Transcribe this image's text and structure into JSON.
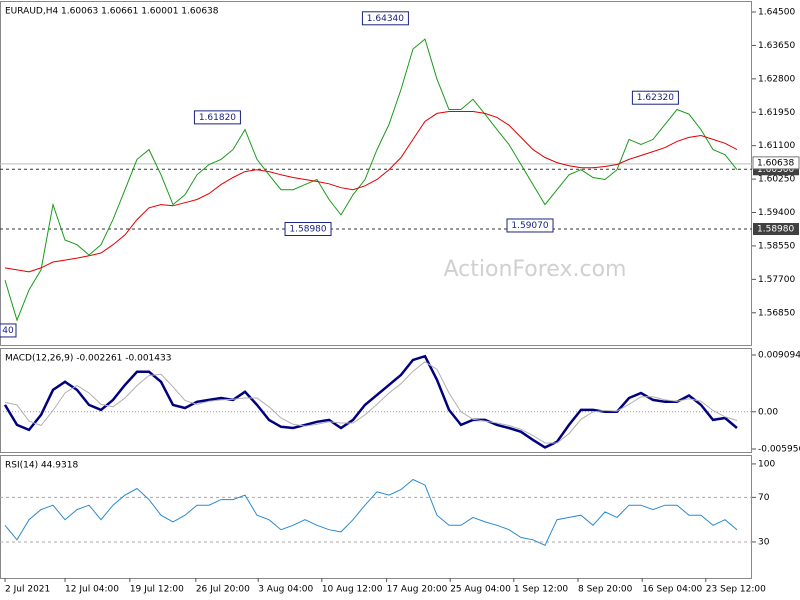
{
  "chart_data": [
    {
      "type": "line",
      "title": "EURAUD,H4  1.60063 1.60661 1.60001 1.60638",
      "watermark": "ActionForex.com",
      "xlim": [
        -0.42,
        62.25
      ],
      "ylim": [
        1.5603,
        1.6478
      ],
      "yticks": [
        {
          "value": 1.645,
          "label": "1.64500"
        },
        {
          "value": 1.6365,
          "label": "1.63650"
        },
        {
          "value": 1.628,
          "label": "1.62800"
        },
        {
          "value": 1.6195,
          "label": "1.61950"
        },
        {
          "value": 1.611,
          "label": "1.61100"
        },
        {
          "value": 1.6025,
          "label": "1.60250"
        },
        {
          "value": 1.594,
          "label": "1.59400"
        },
        {
          "value": 1.5855,
          "label": "1.58550"
        },
        {
          "value": 1.577,
          "label": "1.57700"
        },
        {
          "value": 1.5685,
          "label": "1.56850"
        }
      ],
      "series": [
        {
          "color": "#1a9a1a",
          "values": [
            1.5768,
            1.5666,
            1.5743,
            1.5794,
            1.596,
            1.587,
            1.5858,
            1.5832,
            1.5858,
            1.5922,
            1.5998,
            1.6075,
            1.61,
            1.6036,
            1.596,
            1.5985,
            1.6036,
            1.6062,
            1.6075,
            1.61,
            1.6151,
            1.6075,
            1.6036,
            1.5998,
            1.5998,
            1.6011,
            1.6024,
            1.5973,
            1.5934,
            1.5985,
            1.6024,
            1.61,
            1.6164,
            1.6253,
            1.6356,
            1.6381,
            1.6279,
            1.6202,
            1.6202,
            1.6228,
            1.619,
            1.6151,
            1.6113,
            1.6062,
            1.6011,
            1.596,
            1.5998,
            1.6036,
            1.6049,
            1.6029,
            1.6024,
            1.6049,
            1.6126,
            1.6113,
            1.6126,
            1.6164,
            1.6202,
            1.619,
            1.6151,
            1.61,
            1.6087,
            1.6049
          ]
        },
        {
          "color": "#e00000",
          "values": [
            1.5799,
            1.5794,
            1.5789,
            1.5799,
            1.5814,
            1.5819,
            1.5824,
            1.583,
            1.5837,
            1.5858,
            1.5883,
            1.5922,
            1.5952,
            1.596,
            1.5957,
            1.5965,
            1.5973,
            1.5988,
            1.6011,
            1.6029,
            1.6044,
            1.6049,
            1.6044,
            1.6036,
            1.6029,
            1.6024,
            1.6019,
            1.6013,
            1.6003,
            1.5998,
            1.6008,
            1.6024,
            1.6049,
            1.608,
            1.6126,
            1.6172,
            1.6192,
            1.6197,
            1.6197,
            1.6197,
            1.6192,
            1.6182,
            1.6162,
            1.6131,
            1.61,
            1.608,
            1.6067,
            1.6059,
            1.6054,
            1.6054,
            1.6057,
            1.6062,
            1.6075,
            1.6085,
            1.6095,
            1.6105,
            1.6121,
            1.6131,
            1.6136,
            1.6126,
            1.6116,
            1.61
          ]
        }
      ],
      "hlines": [
        {
          "value": 1.605,
          "label": "1.60500"
        },
        {
          "value": 1.5898,
          "label": "1.58980"
        }
      ],
      "current": {
        "value": 1.60638,
        "label": "1.60638"
      },
      "annotations": [
        {
          "x": 31.7,
          "value": 1.6434,
          "label": "1.64340"
        },
        {
          "x": 17.7,
          "value": 1.6182,
          "label": "1.61820"
        },
        {
          "x": 25.25,
          "value": 1.5898,
          "label": "1.58980"
        },
        {
          "x": 43.75,
          "value": 1.5907,
          "label": "1.59070"
        },
        {
          "x": 54.2,
          "value": 1.6232,
          "label": "1.62320"
        },
        {
          "x": 0,
          "value": 1.564,
          "label": "40"
        }
      ]
    },
    {
      "type": "line",
      "title": "MACD(12,26,9) -0.002261 -0.001433",
      "xlim": [
        -0.42,
        62.25
      ],
      "ylim": [
        -0.00644,
        0.01021
      ],
      "yticks": [
        0.009094,
        {
          "value": 0,
          "label": "0.00"
        },
        -0.005956
      ],
      "series": [
        {
          "color": "#000080",
          "values": [
            0.0011,
            -0.0021,
            -0.0029,
            -0.0005,
            0.0035,
            0.0048,
            0.0035,
            0.0011,
            0.0003,
            0.0019,
            0.0043,
            0.0064,
            0.0064,
            0.0048,
            0.0011,
            0.0006,
            0.0016,
            0.0019,
            0.0022,
            0.0019,
            0.0032,
            0.0011,
            -0.0013,
            -0.0024,
            -0.0026,
            -0.0021,
            -0.0016,
            -0.0013,
            -0.0026,
            -0.0013,
            0.0011,
            0.0027,
            0.0043,
            0.0059,
            0.0083,
            0.0089,
            0.0051,
            0.0003,
            -0.0021,
            -0.0013,
            -0.0013,
            -0.0021,
            -0.0026,
            -0.0032,
            -0.0045,
            -0.0057,
            -0.0048,
            -0.0021,
            0.0003,
            0.0003,
            0,
            0,
            0.0022,
            0.003,
            0.0019,
            0.0016,
            0.0016,
            0.0026,
            0.0011,
            -0.0013,
            -0.001,
            -0.0026
          ]
        },
        {
          "color": "#b0b0b0",
          "values": [
            0.0015,
            0.0011,
            -0.0015,
            -0.0022,
            0.0002,
            0.003,
            0.0042,
            0.003,
            0.0012,
            0.0008,
            0.0022,
            0.0042,
            0.0058,
            0.006,
            0.004,
            0.0018,
            0.0012,
            0.0017,
            0.0019,
            0.002,
            0.0022,
            0.0022,
            0.0008,
            -0.001,
            -0.002,
            -0.0023,
            -0.002,
            -0.0016,
            -0.0018,
            -0.0018,
            -0.0005,
            0.0012,
            0.003,
            0.0045,
            0.0065,
            0.008,
            0.0068,
            0.003,
            0,
            -0.0012,
            -0.0015,
            -0.0018,
            -0.0022,
            -0.0028,
            -0.0038,
            -0.005,
            -0.005,
            -0.0035,
            -0.0012,
            0,
            0.0002,
            0.0001,
            0.0012,
            0.0024,
            0.0024,
            0.0019,
            0.0017,
            0.0021,
            0.0017,
            0.0002,
            -0.0008,
            -0.0014
          ]
        }
      ]
    },
    {
      "type": "line",
      "title": "RSI(14) 44.9318",
      "xlim": [
        -0.42,
        62.25
      ],
      "ylim": [
        -2.3,
        108
      ],
      "yticks": [
        100,
        70,
        30
      ],
      "levels": [
        70,
        30
      ],
      "series": [
        {
          "color": "#2a8ad0",
          "values": [
            45,
            32,
            50,
            59,
            63,
            50,
            59,
            63,
            50,
            63,
            72,
            78,
            68,
            54,
            48,
            54,
            63,
            63,
            68,
            68,
            72,
            54,
            50,
            41,
            45,
            50,
            45,
            41,
            39,
            50,
            63,
            75,
            72,
            77,
            86,
            81,
            54,
            45,
            45,
            52,
            48,
            45,
            41,
            34,
            32,
            27,
            50,
            52,
            54,
            45,
            57,
            52,
            63,
            63,
            59,
            63,
            63,
            54,
            54,
            45,
            50,
            41
          ]
        }
      ],
      "xticks": [
        {
          "value": 0,
          "label": "2 Jul 2021"
        },
        {
          "value": 5,
          "label": "12 Jul 04:00"
        },
        {
          "value": 10.4,
          "label": "19 Jul 12:00"
        },
        {
          "value": 15.9,
          "label": "26 Jul 20:00"
        },
        {
          "value": 21.1,
          "label": "3 Aug 04:00"
        },
        {
          "value": 26.4,
          "label": "10 Aug 12:00"
        },
        {
          "value": 31.8,
          "label": "17 Aug 20:00"
        },
        {
          "value": 37.1,
          "label": "25 Aug 04:00"
        },
        {
          "value": 42.4,
          "label": "1 Sep 12:00"
        },
        {
          "value": 47.75,
          "label": "8 Sep 20:00"
        },
        {
          "value": 53.1,
          "label": "16 Sep 04:00"
        },
        {
          "value": 58.4,
          "label": "23 Sep 12:00"
        }
      ]
    }
  ]
}
